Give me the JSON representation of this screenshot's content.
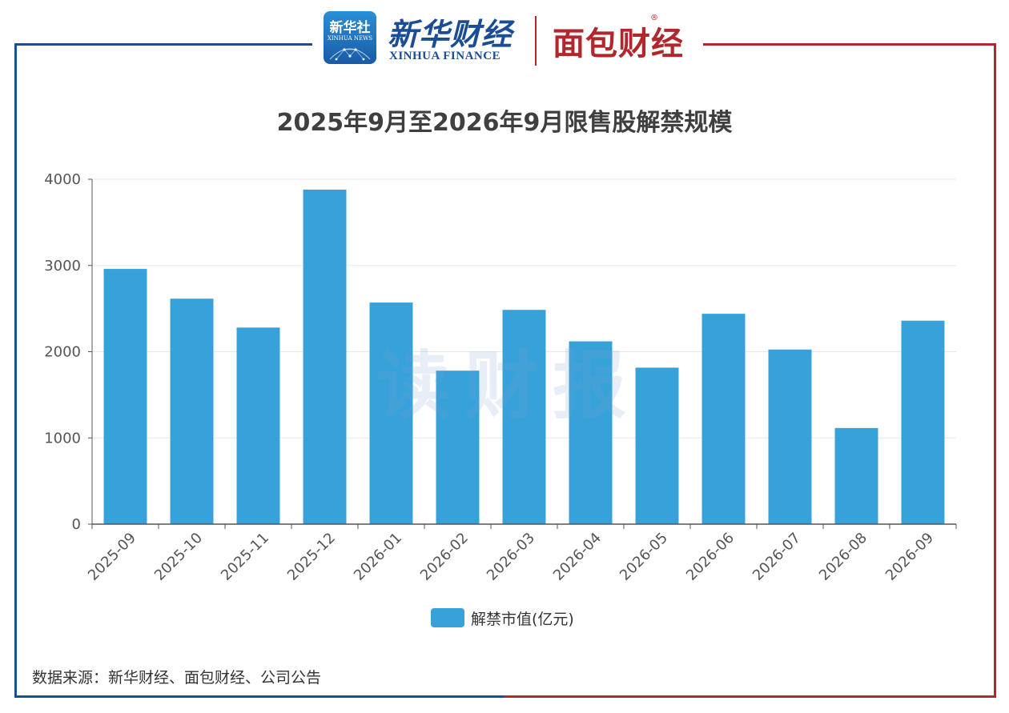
{
  "header": {
    "xinhua_logo_cn": "新华社",
    "xinhua_logo_en": "XINHUA NEWS",
    "finance_brand_cn": "新华财经",
    "finance_brand_en": "XINHUA FINANCE",
    "mianbao_brand": "面包财经",
    "registered_mark": "®",
    "frame_colors": {
      "left": "#1f4e8c",
      "right": "#b1272b"
    }
  },
  "watermark": "读财报",
  "chart_data": {
    "type": "bar",
    "title": "2025年9月至2026年9月限售股解禁规模",
    "categories": [
      "2025-09",
      "2025-10",
      "2025-11",
      "2025-12",
      "2026-01",
      "2026-02",
      "2026-03",
      "2026-04",
      "2026-05",
      "2026-06",
      "2026-07",
      "2026-08",
      "2026-09"
    ],
    "series": [
      {
        "name": "解禁市值(亿元)",
        "color": "#37a2da",
        "values": [
          2960,
          2615,
          2280,
          3880,
          2570,
          1780,
          2485,
          2120,
          1815,
          2440,
          2025,
          1115,
          2360
        ]
      }
    ],
    "xlabel": "",
    "ylabel": "",
    "ylim": [
      0,
      4000
    ],
    "yticks": [
      0,
      1000,
      2000,
      3000,
      4000
    ],
    "grid": true,
    "legend_position": "bottom-center"
  },
  "source_note": "数据来源：新华财经、面包财经、公司公告"
}
